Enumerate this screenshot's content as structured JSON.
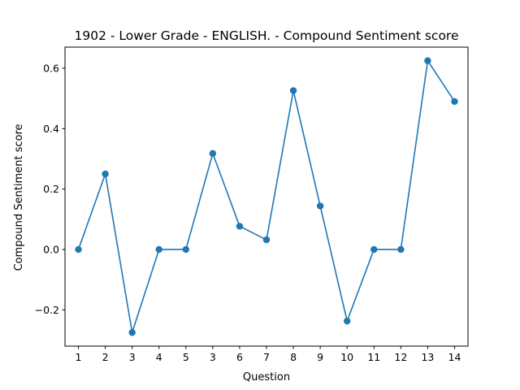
{
  "chart_data": {
    "type": "line",
    "title": "1902 - Lower Grade - ENGLISH. - Compound Sentiment score",
    "xlabel": "Question",
    "ylabel": "Compound Sentiment score",
    "categories": [
      "1",
      "2",
      "3",
      "4",
      "5",
      "3",
      "6",
      "7",
      "8",
      "9",
      "10",
      "11",
      "12",
      "13",
      "14"
    ],
    "series": [
      {
        "name": "Compound Sentiment score",
        "color": "#1f77b4",
        "values": [
          0.0,
          0.25,
          -0.275,
          0.0,
          0.0,
          0.318,
          0.077,
          0.032,
          0.526,
          0.144,
          -0.237,
          0.0,
          0.0,
          0.625,
          0.49
        ]
      }
    ],
    "ylim": [
      -0.32,
      0.67
    ],
    "yticks": [
      -0.2,
      0.0,
      0.2,
      0.4,
      0.6
    ],
    "ytick_labels": [
      "−0.2",
      "0.0",
      "0.2",
      "0.4",
      "0.6"
    ],
    "grid": false,
    "legend": "none"
  }
}
